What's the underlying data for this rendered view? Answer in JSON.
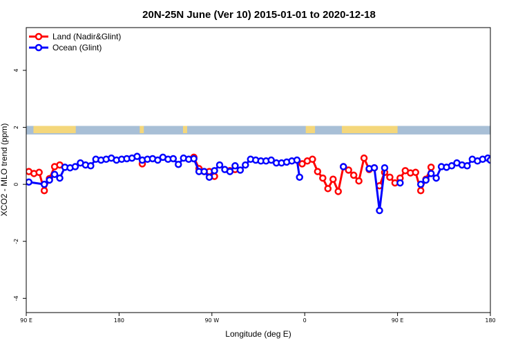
{
  "chart_data": {
    "type": "line",
    "title": "20N-25N June (Ver 10)   2015-01-01 to 2020-12-18",
    "xlabel": "Longitude (deg E)",
    "ylabel": "XCO2 - MLO trend (ppm)",
    "xlim": [
      90,
      450
    ],
    "ylim": [
      -4.5,
      5.5
    ],
    "x_ticks": [
      {
        "value": 90,
        "label": "90 E"
      },
      {
        "value": 180,
        "label": "180"
      },
      {
        "value": 270,
        "label": "90 W"
      },
      {
        "value": 360,
        "label": "0"
      },
      {
        "value": 450,
        "label": "90 E"
      },
      {
        "value": 540,
        "label": "180"
      }
    ],
    "y_ticks": [
      {
        "value": -4,
        "label": "-4"
      },
      {
        "value": -2,
        "label": "-2"
      },
      {
        "value": 0,
        "label": "0"
      },
      {
        "value": 2,
        "label": "2"
      },
      {
        "value": 4,
        "label": "4"
      }
    ],
    "legend_position": "top-left",
    "colors": {
      "land": "#ff0000",
      "ocean": "#0000ff",
      "land_mass": "#f4d77b",
      "sea": "#a8bfd6"
    },
    "map_band": {
      "y_bottom": 1.75,
      "y_top": 2.05,
      "land_segments": [
        [
          97,
          138
        ],
        [
          200,
          204
        ],
        [
          242,
          246
        ],
        [
          361,
          370
        ],
        [
          396,
          450
        ]
      ]
    },
    "series": [
      {
        "name": "Land (Nadir&Glint)",
        "color": "#ff0000",
        "segments": [
          {
            "x": [
              92.5,
              97.5,
              102.5,
              107.5,
              112.5,
              117.5,
              122.5
            ],
            "y": [
              0.45,
              0.38,
              0.42,
              -0.22,
              0.2,
              0.62,
              0.68
            ]
          },
          {
            "x": [
              202.5
            ],
            "y": [
              0.72
            ]
          },
          {
            "x": [
              252.5,
              257.5,
              262.5,
              267.5,
              272.5
            ],
            "y": [
              0.95,
              0.55,
              0.45,
              0.45,
              0.28
            ]
          },
          {
            "x": [
              287.5,
              292.5
            ],
            "y": [
              0.48,
              0.52
            ]
          },
          {
            "x": [
              357.5,
              362.5,
              367.5,
              372.5,
              377.5,
              382.5,
              387.5,
              392.5,
              397.5,
              402.5,
              407.5,
              412.5,
              417.5,
              422.5,
              427.5
            ],
            "y": [
              0.72,
              0.82,
              0.88,
              0.45,
              0.22,
              -0.15,
              0.18,
              -0.25,
              0.62,
              0.5,
              0.32,
              0.12,
              0.92,
              0.52,
              0.58
            ]
          },
          {
            "x": [
              432.5,
              437.5,
              442.5,
              447.5,
              452.5,
              457.5,
              462.5,
              467.5,
              472.5,
              477.5,
              482.5
            ],
            "y": [
              -0.05,
              0.42,
              0.25,
              0.05,
              0.22,
              0.48,
              0.4,
              0.42,
              -0.22,
              0.18,
              0.6
            ]
          }
        ]
      },
      {
        "name": "Ocean (Glint)",
        "color": "#0000ff",
        "segments": [
          {
            "x": [
              92.5,
              107.5,
              112.5,
              117.5,
              122.5,
              127.5,
              132.5,
              137.5,
              142.5,
              147.5,
              152.5,
              157.5,
              162.5,
              167.5,
              172.5,
              177.5,
              182.5,
              187.5,
              192.5,
              197.5,
              202.5,
              207.5,
              212.5,
              217.5,
              222.5,
              227.5,
              232.5,
              237.5,
              242.5,
              247.5,
              252.5,
              257.5,
              262.5,
              267.5,
              272.5,
              277.5,
              282.5,
              287.5,
              292.5,
              297.5,
              302.5,
              307.5,
              312.5,
              317.5,
              322.5,
              327.5,
              332.5,
              337.5,
              342.5,
              347.5,
              352.5,
              355.0
            ],
            "y": [
              0.08,
              0.0,
              0.15,
              0.35,
              0.22,
              0.6,
              0.58,
              0.62,
              0.75,
              0.68,
              0.65,
              0.88,
              0.85,
              0.88,
              0.92,
              0.85,
              0.88,
              0.9,
              0.92,
              0.98,
              0.85,
              0.88,
              0.9,
              0.85,
              0.95,
              0.88,
              0.9,
              0.7,
              0.92,
              0.88,
              0.9,
              0.45,
              0.45,
              0.25,
              0.48,
              0.68,
              0.52,
              0.45,
              0.65,
              0.5,
              0.68,
              0.88,
              0.85,
              0.82,
              0.82,
              0.85,
              0.75,
              0.75,
              0.78,
              0.82,
              0.85,
              0.25
            ]
          },
          {
            "x": [
              397.5
            ],
            "y": [
              0.62
            ]
          },
          {
            "x": [
              422.5,
              427.5,
              432.5,
              437.5
            ],
            "y": [
              0.55,
              0.58,
              -0.92,
              0.58
            ]
          },
          {
            "x": [
              452.5
            ],
            "y": [
              0.05
            ]
          },
          {
            "x": [
              472.5,
              477.5,
              482.5,
              487.5,
              492.5,
              497.5,
              502.5,
              507.5,
              512.5,
              517.5,
              522.5,
              527.5,
              532.5,
              537.5,
              540.0
            ],
            "y": [
              0.0,
              0.15,
              0.38,
              0.22,
              0.62,
              0.6,
              0.65,
              0.75,
              0.68,
              0.65,
              0.88,
              0.82,
              0.88,
              0.92,
              0.85
            ]
          }
        ]
      }
    ]
  }
}
